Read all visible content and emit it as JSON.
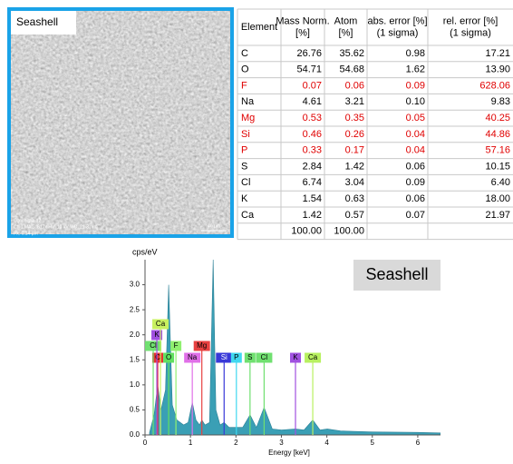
{
  "image": {
    "label": "Seashell",
    "caption": [
      "Conchiglia 12",
      "Ch 1   MAG: 617x   HV: 10 kV   WD: 21.3 mm",
      "Px: 0.14 µm"
    ],
    "scale": "40 µm"
  },
  "table": {
    "header": [
      [
        "Element"
      ],
      [
        "Mass Norm.",
        "[%]"
      ],
      [
        "Atom",
        "[%]"
      ],
      [
        "abs. error [%]",
        "(1 sigma)"
      ],
      [
        "rel. error [%]",
        "(1 sigma)"
      ]
    ],
    "rows": [
      {
        "cells": [
          "C",
          "26.76",
          "35.62",
          "0.98",
          "17.21"
        ],
        "color": "#000000"
      },
      {
        "cells": [
          "O",
          "54.71",
          "54.68",
          "1.62",
          "13.90"
        ],
        "color": "#000000"
      },
      {
        "cells": [
          "F",
          "0.07",
          "0.06",
          "0.09",
          "628.06"
        ],
        "color": "#e00000"
      },
      {
        "cells": [
          "Na",
          "4.61",
          "3.21",
          "0.10",
          "9.83"
        ],
        "color": "#000000"
      },
      {
        "cells": [
          "Mg",
          "0.53",
          "0.35",
          "0.05",
          "40.25"
        ],
        "color": "#e00000"
      },
      {
        "cells": [
          "Si",
          "0.46",
          "0.26",
          "0.04",
          "44.86"
        ],
        "color": "#e00000"
      },
      {
        "cells": [
          "P",
          "0.33",
          "0.17",
          "0.04",
          "57.16"
        ],
        "color": "#e00000"
      },
      {
        "cells": [
          "S",
          "2.84",
          "1.42",
          "0.06",
          "10.15"
        ],
        "color": "#000000"
      },
      {
        "cells": [
          "Cl",
          "6.74",
          "3.04",
          "0.09",
          "6.40"
        ],
        "color": "#000000"
      },
      {
        "cells": [
          "K",
          "1.54",
          "0.63",
          "0.06",
          "18.00"
        ],
        "color": "#000000"
      },
      {
        "cells": [
          "Ca",
          "1.42",
          "0.57",
          "0.07",
          "21.97"
        ],
        "color": "#000000"
      }
    ],
    "total": [
      "100.00",
      "100.00"
    ]
  },
  "chart_data": {
    "type": "area",
    "ylabel": "cps/eV",
    "xlabel": "Energy [keV]",
    "annotation": "Seashell",
    "color": "#3a9fb5",
    "x": [
      0.1,
      0.2,
      0.28,
      0.35,
      0.45,
      0.52,
      0.6,
      0.7,
      0.85,
      0.95,
      1.04,
      1.12,
      1.2,
      1.25,
      1.32,
      1.42,
      1.5,
      1.56,
      1.65,
      1.74,
      1.85,
      2.01,
      2.15,
      2.31,
      2.45,
      2.62,
      2.8,
      3.0,
      3.31,
      3.5,
      3.69,
      3.85,
      4.01,
      4.3,
      5.0,
      6.0,
      6.5
    ],
    "values": [
      0.05,
      0.4,
      1.0,
      0.5,
      0.9,
      3.0,
      0.6,
      0.3,
      0.2,
      0.25,
      0.65,
      0.3,
      0.2,
      0.3,
      0.2,
      0.25,
      3.5,
      0.5,
      0.2,
      0.25,
      0.15,
      0.15,
      0.15,
      0.4,
      0.15,
      0.55,
      0.12,
      0.1,
      0.12,
      0.1,
      0.3,
      0.1,
      0.12,
      0.08,
      0.06,
      0.05,
      0.04
    ],
    "xlim": [
      0,
      6.5
    ],
    "ylim": [
      0,
      3.5
    ],
    "xticks": [
      0,
      1,
      2,
      3,
      4,
      5,
      6
    ],
    "yticks": [
      {
        "value": 0,
        "label": "0.0"
      },
      {
        "value": 0.5,
        "label": "0.5"
      },
      {
        "value": 1,
        "label": "1.0"
      },
      {
        "value": 1.5,
        "label": "1.5"
      },
      {
        "value": 2,
        "label": "2.0"
      },
      {
        "value": 2.5,
        "label": "2.5"
      },
      {
        "value": 3,
        "label": "3.0"
      }
    ],
    "element_lines": [
      {
        "label": "C",
        "energy": 0.28,
        "color": "#e83030"
      },
      {
        "label": "O",
        "energy": 0.52,
        "color": "#60e060"
      },
      {
        "label": "F",
        "energy": 0.68,
        "color": "#90f070"
      },
      {
        "label": "Na",
        "energy": 1.04,
        "color": "#e070e8"
      },
      {
        "label": "Mg",
        "energy": 1.25,
        "color": "#e84040"
      },
      {
        "label": "Si",
        "energy": 1.74,
        "color": "#3838d8"
      },
      {
        "label": "P",
        "energy": 2.01,
        "color": "#40d8f0"
      },
      {
        "label": "S",
        "energy": 2.31,
        "color": "#70e070"
      },
      {
        "label": "Cl",
        "energy": 2.62,
        "color": "#70e070"
      },
      {
        "label": "K",
        "energy": 3.31,
        "color": "#a050e0"
      },
      {
        "label": "Ca",
        "energy": 3.69,
        "color": "#b8f060"
      },
      {
        "label": "Cl",
        "energy": 0.18,
        "color": "#70e070"
      },
      {
        "label": "K",
        "energy": 0.26,
        "color": "#a050e0"
      },
      {
        "label": "Ca",
        "energy": 0.34,
        "color": "#c8f060"
      }
    ]
  }
}
